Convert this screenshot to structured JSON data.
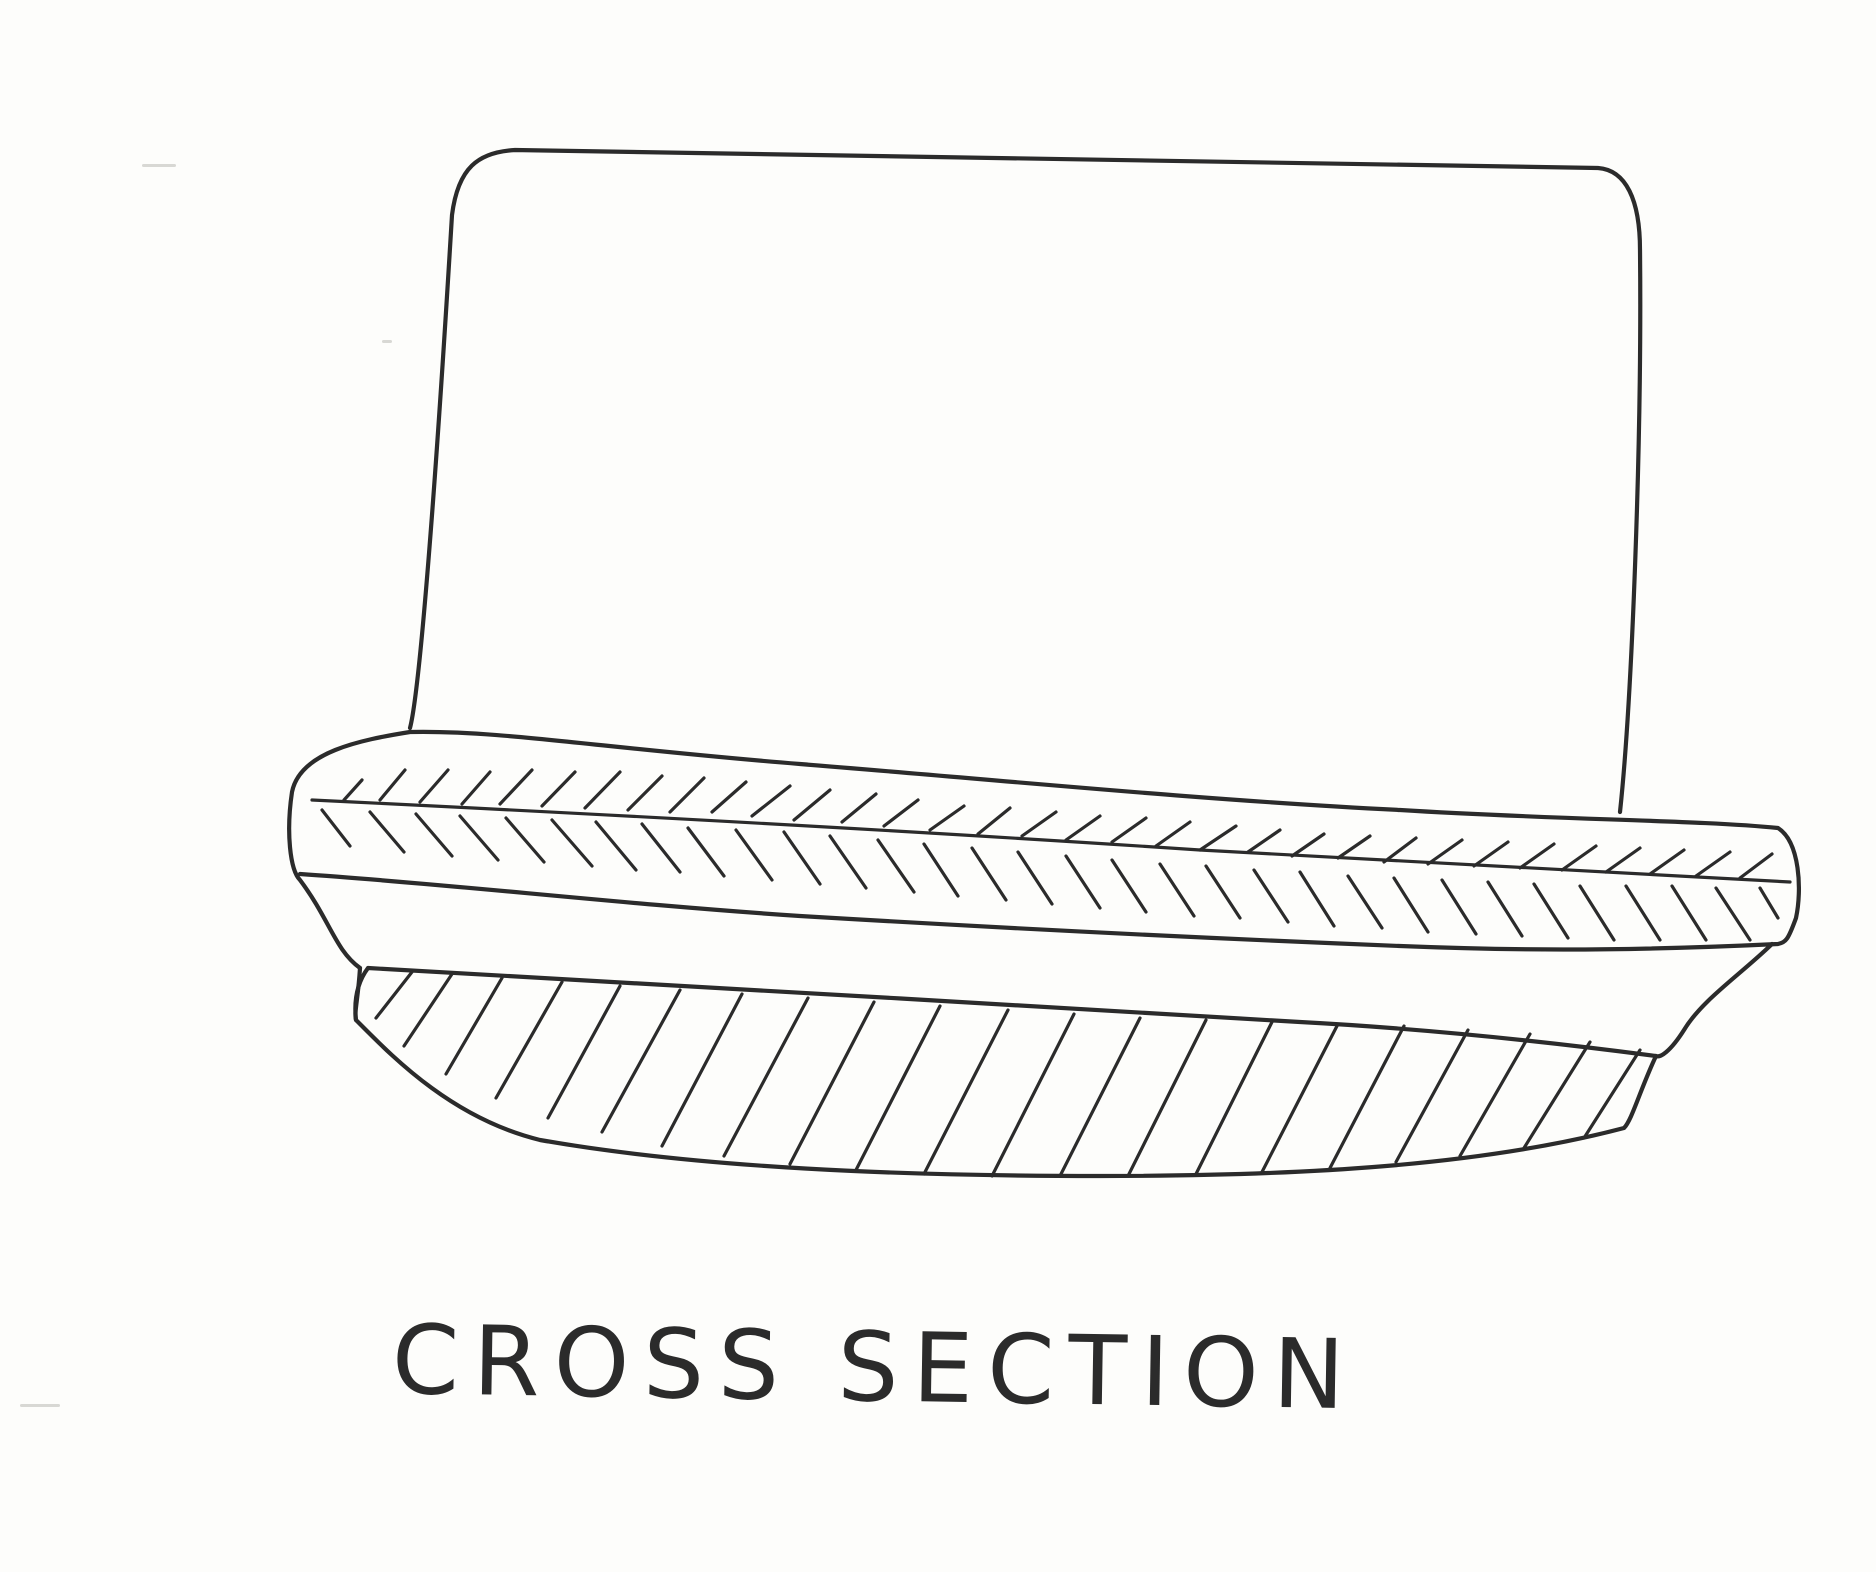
{
  "diagram": {
    "caption": "CROSS SECTION",
    "ink_color": "#2b2b2b",
    "paper_color": "#fdfdfb",
    "parts": [
      "upper-block",
      "upper-hatched-band",
      "lower-hatched-band"
    ]
  }
}
